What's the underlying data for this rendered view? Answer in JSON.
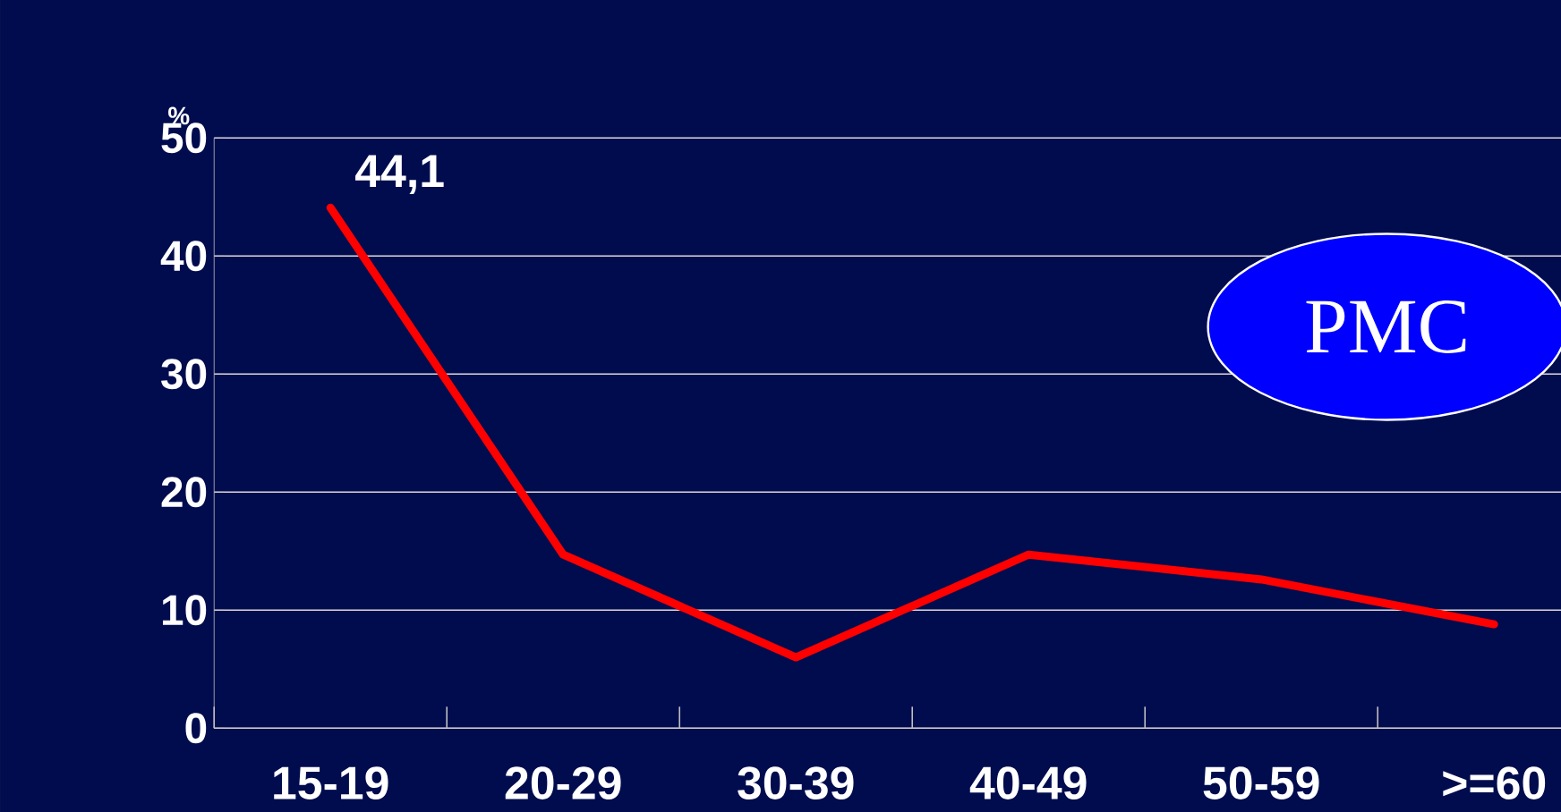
{
  "chart_data": {
    "type": "line",
    "ylabel": "%",
    "categories": [
      "15-19",
      "20-29",
      "30-39",
      "40-49",
      "50-59",
      ">=60"
    ],
    "series": [
      {
        "color": "#ff0000",
        "values": [
          44.1,
          14.7,
          6.0,
          14.7,
          12.6,
          8.8
        ]
      }
    ],
    "ylim": [
      0,
      50
    ],
    "yticks": [
      0,
      10,
      20,
      30,
      40,
      50
    ],
    "grid": "y",
    "marker": "none",
    "line_style": "solid",
    "annotations": [
      {
        "text": "44,1",
        "x": "15-19",
        "y": 44.1
      },
      "PMC"
    ]
  }
}
